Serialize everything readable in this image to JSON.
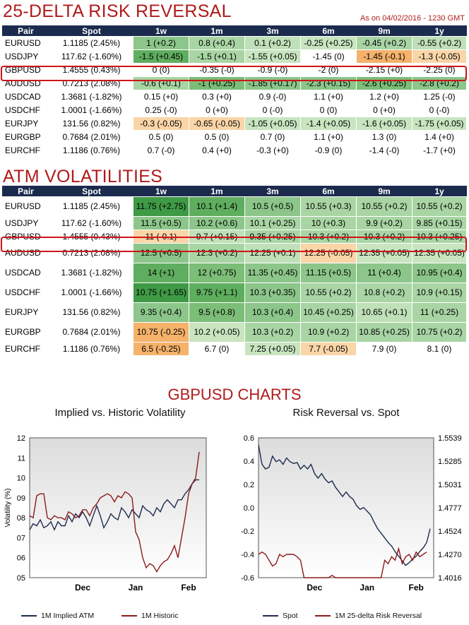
{
  "rr": {
    "title": "25-DELTA RISK REVERSAL",
    "as_of": "As on 04/02/2016 - 1230 GMT",
    "headers": [
      "Pair",
      "Spot",
      "1w",
      "1m",
      "3m",
      "6m",
      "9m",
      "1y"
    ],
    "rows": [
      {
        "pair": "EURUSD",
        "spot": "1.1185 (2.45%)",
        "cells": [
          "1 (+0.2)",
          "0.8 (+0.4)",
          "0.1 (+0.2)",
          "-0.25 (+0.25)",
          "-0.45 (+0.2)",
          "-0.55 (+0.2)"
        ],
        "colors": [
          "#8cc68a",
          "#a9d5a4",
          "#bfe0b8",
          "#c8e5c0",
          "#a9d5a4",
          "#bfe0b8"
        ]
      },
      {
        "pair": "USDJPY",
        "spot": "117.62 (-1.60%)",
        "cells": [
          "-1.5 (+0.45)",
          "-1.5 (+0.1)",
          "-1.55 (+0.05)",
          "-1.45 (0)",
          "-1.45 (-0.1)",
          "-1.3 (-0.05)"
        ],
        "colors": [
          "#5fae5f",
          "#a9d5a4",
          "#c8e5c0",
          "#ffffff",
          "#f5b26b",
          "#f9d5a8"
        ]
      },
      {
        "pair": "GBPUSD",
        "spot": "1.4555 (0.43%)",
        "cells": [
          "0 (0)",
          "-0.35 (-0)",
          "-0.9 (-0)",
          "-2 (0)",
          "-2.15 (+0)",
          "-2.25 (0)"
        ],
        "colors": [
          "#ffffff",
          "#ffffff",
          "#ffffff",
          "#ffffff",
          "#ffffff",
          "#ffffff"
        ]
      },
      {
        "pair": "AUDUSD",
        "spot": "0.7213 (2.08%)",
        "cells": [
          "-0.6 (+0.1)",
          "-1 (+0.25)",
          "-1.85 (+0.17)",
          "-2.3 (+0.15)",
          "-2.6 (+0.25)",
          "-2.8 (+0.2)"
        ],
        "colors": [
          "#a9d5a4",
          "#7cbd77",
          "#8cc68a",
          "#8cc68a",
          "#7cbd77",
          "#8cc68a"
        ]
      },
      {
        "pair": "USDCAD",
        "spot": "1.3681 (-1.82%)",
        "cells": [
          "0.15 (+0)",
          "0.3 (+0)",
          "0.9 (-0)",
          "1.1 (+0)",
          "1.2 (+0)",
          "1.25 (-0)"
        ],
        "colors": [
          "#ffffff",
          "#ffffff",
          "#ffffff",
          "#ffffff",
          "#ffffff",
          "#ffffff"
        ]
      },
      {
        "pair": "USDCHF",
        "spot": "1.0001 (-1.66%)",
        "cells": [
          "0.25 (-0)",
          "0 (+0)",
          "0 (-0)",
          "0 (0)",
          "0 (+0)",
          "0 (-0)"
        ],
        "colors": [
          "#ffffff",
          "#ffffff",
          "#ffffff",
          "#ffffff",
          "#ffffff",
          "#ffffff"
        ]
      },
      {
        "pair": "EURJPY",
        "spot": "131.56 (0.82%)",
        "cells": [
          "-0.3 (-0.05)",
          "-0.65 (-0.05)",
          "-1.05 (+0.05)",
          "-1.4 (+0.05)",
          "-1.6 (+0.05)",
          "-1.75 (+0.05)"
        ],
        "colors": [
          "#f9d5a8",
          "#f9d5a8",
          "#c8e5c0",
          "#c8e5c0",
          "#c8e5c0",
          "#c8e5c0"
        ]
      },
      {
        "pair": "EURGBP",
        "spot": "0.7684 (2.01%)",
        "cells": [
          "0.5 (0)",
          "0.5 (0)",
          "0.7 (0)",
          "1.1 (+0)",
          "1.3 (0)",
          "1.4 (+0)"
        ],
        "colors": [
          "#ffffff",
          "#ffffff",
          "#ffffff",
          "#ffffff",
          "#ffffff",
          "#ffffff"
        ]
      },
      {
        "pair": "EURCHF",
        "spot": "1.1186 (0.76%)",
        "cells": [
          "0.7 (-0)",
          "0.4 (+0)",
          "-0.3 (+0)",
          "-0.9 (0)",
          "-1.4 (-0)",
          "-1.7 (+0)"
        ],
        "colors": [
          "#ffffff",
          "#ffffff",
          "#ffffff",
          "#ffffff",
          "#ffffff",
          "#ffffff"
        ]
      }
    ]
  },
  "atm": {
    "title": "ATM VOLATILITIES",
    "headers": [
      "Pair",
      "Spot",
      "1w",
      "1m",
      "3m",
      "6m",
      "9m",
      "1y"
    ],
    "rows": [
      {
        "pair": "EURUSD",
        "spot": "1.1185 (2.45%)",
        "cells": [
          "11.75 (+2.75)",
          "10.1 (+1.4)",
          "10.5 (+0.5)",
          "10.55 (+0.3)",
          "10.55 (+0.2)",
          "10.55 (+0.2)"
        ],
        "colors": [
          "#3f9a45",
          "#5fae5f",
          "#8cc68a",
          "#a9d5a4",
          "#a9d5a4",
          "#a9d5a4"
        ]
      },
      {
        "pair": "USDJPY",
        "spot": "117.62 (-1.60%)",
        "cells": [
          "11.5 (+0.5)",
          "10.2 (+0.6)",
          "10.1 (+0.25)",
          "10 (+0.3)",
          "9.9 (+0.2)",
          "9.85 (+0.15)"
        ],
        "colors": [
          "#8cc68a",
          "#8cc68a",
          "#a9d5a4",
          "#a9d5a4",
          "#a9d5a4",
          "#a9d5a4"
        ]
      },
      {
        "pair": "GBPUSD",
        "spot": "1.4555 (0.43%)",
        "cells": [
          "11 (-0.1)",
          "9.7 (+0.15)",
          "9.35 (+0.25)",
          "10.3 (+0.2)",
          "10.3 (+0.2)",
          "10.3 (+0.25)"
        ],
        "colors": [
          "#f9d5a8",
          "#bfe0b8",
          "#a9d5a4",
          "#a9d5a4",
          "#a9d5a4",
          "#a9d5a4"
        ]
      },
      {
        "pair": "AUDUSD",
        "spot": "0.7213 (2.08%)",
        "cells": [
          "12.5 (+0.5)",
          "12.3 (+0.2)",
          "12.25 (+0.1)",
          "12.25 (-0.05)",
          "12.35 (+0.05)",
          "12.35 (+0.05)"
        ],
        "colors": [
          "#8cc68a",
          "#a9d5a4",
          "#bfe0b8",
          "#f9d5a8",
          "#c8e5c0",
          "#c8e5c0"
        ]
      },
      {
        "pair": "USDCAD",
        "spot": "1.3681 (-1.82%)",
        "cells": [
          "14 (+1)",
          "12 (+0.75)",
          "11.35 (+0.45)",
          "11.15 (+0.5)",
          "11 (+0.4)",
          "10.95 (+0.4)"
        ],
        "colors": [
          "#5fae5f",
          "#7cbd77",
          "#8cc68a",
          "#8cc68a",
          "#8cc68a",
          "#8cc68a"
        ]
      },
      {
        "pair": "USDCHF",
        "spot": "1.0001 (-1.66%)",
        "cells": [
          "10.75 (+1.65)",
          "9.75 (+1.1)",
          "10.3 (+0.35)",
          "10.55 (+0.2)",
          "10.8 (+0.2)",
          "10.9 (+0.15)"
        ],
        "colors": [
          "#3f9a45",
          "#5fae5f",
          "#8cc68a",
          "#a9d5a4",
          "#a9d5a4",
          "#a9d5a4"
        ]
      },
      {
        "pair": "EURJPY",
        "spot": "131.56 (0.82%)",
        "cells": [
          "9.35 (+0.4)",
          "9.5 (+0.8)",
          "10.3 (+0.4)",
          "10.45 (+0.25)",
          "10.65 (+0.1)",
          "11 (+0.25)"
        ],
        "colors": [
          "#8cc68a",
          "#7cbd77",
          "#8cc68a",
          "#a9d5a4",
          "#bfe0b8",
          "#a9d5a4"
        ]
      },
      {
        "pair": "EURGBP",
        "spot": "0.7684 (2.01%)",
        "cells": [
          "10.75 (-0.25)",
          "10.2 (+0.05)",
          "10.3 (+0.2)",
          "10.9 (+0.2)",
          "10.85 (+0.25)",
          "10.75 (+0.2)"
        ],
        "colors": [
          "#f5b26b",
          "#c8e5c0",
          "#a9d5a4",
          "#a9d5a4",
          "#a9d5a4",
          "#a9d5a4"
        ]
      },
      {
        "pair": "EURCHF",
        "spot": "1.1186 (0.76%)",
        "cells": [
          "6.5 (-0.25)",
          "6.7 (0)",
          "7.25 (+0.05)",
          "7.7 (-0.05)",
          "7.9 (0)",
          "8.1 (0)"
        ],
        "colors": [
          "#f5b26b",
          "#ffffff",
          "#c8e5c0",
          "#f9d5a8",
          "#ffffff",
          "#ffffff"
        ]
      }
    ]
  },
  "charts_title": "GBPUSD CHARTS",
  "chart_data": [
    {
      "type": "line",
      "title": "Implied vs. Historic Volatility",
      "ylabel": "Volatility (%)",
      "ylim": [
        5,
        12
      ],
      "yticks": [
        "05",
        "06",
        "07",
        "08",
        "09",
        "10",
        "11",
        "12"
      ],
      "xticks": [
        "Dec",
        "Jan",
        "Feb"
      ],
      "xtick_pos": [
        0.3,
        0.6,
        0.9
      ],
      "grid": false,
      "legend_position": "bottom",
      "series": [
        {
          "name": "1M Implied ATM",
          "color": "#1b2b4d",
          "x": [
            0,
            0.02,
            0.04,
            0.06,
            0.08,
            0.1,
            0.12,
            0.14,
            0.16,
            0.18,
            0.2,
            0.22,
            0.24,
            0.26,
            0.28,
            0.3,
            0.32,
            0.34,
            0.36,
            0.38,
            0.4,
            0.42,
            0.44,
            0.46,
            0.48,
            0.5,
            0.52,
            0.54,
            0.56,
            0.58,
            0.6,
            0.62,
            0.64,
            0.66,
            0.68,
            0.7,
            0.72,
            0.74,
            0.76,
            0.78,
            0.8,
            0.82,
            0.84,
            0.86,
            0.88,
            0.9,
            0.92,
            0.94,
            0.96
          ],
          "y": [
            7.4,
            7.7,
            7.6,
            7.9,
            7.5,
            7.6,
            7.8,
            7.4,
            7.8,
            7.6,
            7.6,
            8.1,
            7.8,
            8.2,
            8.0,
            8.3,
            8.0,
            7.6,
            8.1,
            8.6,
            8.1,
            7.5,
            7.8,
            8.2,
            8.0,
            7.9,
            8.5,
            8.3,
            8.0,
            8.4,
            8.2,
            8.0,
            8.6,
            8.4,
            8.3,
            8.1,
            8.5,
            8.3,
            8.7,
            8.9,
            8.7,
            8.5,
            8.9,
            8.9,
            9.2,
            9.4,
            9.7,
            9.9,
            9.9
          ]
        },
        {
          "name": "1M Historic",
          "color": "#8b1a1a",
          "x": [
            0,
            0.02,
            0.04,
            0.06,
            0.08,
            0.1,
            0.12,
            0.14,
            0.16,
            0.18,
            0.2,
            0.22,
            0.24,
            0.26,
            0.28,
            0.3,
            0.32,
            0.34,
            0.36,
            0.38,
            0.4,
            0.42,
            0.44,
            0.46,
            0.48,
            0.5,
            0.52,
            0.54,
            0.56,
            0.58,
            0.6,
            0.62,
            0.64,
            0.66,
            0.68,
            0.7,
            0.72,
            0.74,
            0.76,
            0.78,
            0.8,
            0.82,
            0.84,
            0.86,
            0.88,
            0.9,
            0.92,
            0.94,
            0.96
          ],
          "y": [
            8.1,
            8.0,
            9.1,
            9.2,
            9.2,
            8.0,
            7.9,
            8.1,
            8.0,
            8.0,
            7.9,
            8.3,
            8.2,
            8.0,
            8.1,
            8.4,
            8.4,
            8.1,
            8.5,
            8.7,
            9.0,
            9.1,
            9.2,
            9.1,
            8.8,
            9.1,
            9.0,
            9.3,
            9.2,
            9.0,
            7.3,
            6.9,
            6.0,
            5.5,
            5.7,
            5.6,
            5.3,
            5.6,
            5.8,
            5.9,
            6.2,
            6.6,
            6.0,
            7.0,
            8.0,
            9.2,
            9.7,
            10.0,
            11.3
          ]
        }
      ]
    },
    {
      "type": "line",
      "title": "Risk Reversal vs. Spot",
      "ylim": [
        -0.6,
        0.6
      ],
      "yticks_left": [
        "-0.6",
        "-0.4",
        "-0.2",
        "0.0",
        "0.2",
        "0.4",
        "0.6"
      ],
      "y2lim": [
        1.4016,
        1.5539
      ],
      "yticks_right": [
        "1.4016",
        "1.4270",
        "1.4524",
        "1.4777",
        "1.5031",
        "1.5285",
        "1.5539"
      ],
      "xticks": [
        "Dec",
        "Jan",
        "Feb"
      ],
      "xtick_pos": [
        0.32,
        0.62,
        0.9
      ],
      "grid": false,
      "legend_position": "bottom",
      "series": [
        {
          "name": "Spot",
          "color": "#1b2b4d",
          "axis": "right",
          "x": [
            0,
            0.02,
            0.04,
            0.06,
            0.08,
            0.1,
            0.12,
            0.14,
            0.16,
            0.18,
            0.2,
            0.22,
            0.24,
            0.26,
            0.28,
            0.3,
            0.32,
            0.34,
            0.36,
            0.38,
            0.4,
            0.42,
            0.44,
            0.46,
            0.48,
            0.5,
            0.52,
            0.54,
            0.56,
            0.58,
            0.6,
            0.62,
            0.64,
            0.66,
            0.68,
            0.7,
            0.72,
            0.74,
            0.76,
            0.78,
            0.8,
            0.82,
            0.84,
            0.86,
            0.88,
            0.9,
            0.92,
            0.94,
            0.96,
            0.98
          ],
          "y": [
            1.546,
            1.525,
            1.52,
            1.522,
            1.534,
            1.528,
            1.53,
            1.525,
            1.532,
            1.528,
            1.526,
            1.527,
            1.52,
            1.524,
            1.52,
            1.525,
            1.515,
            1.51,
            1.515,
            1.509,
            1.505,
            1.507,
            1.5,
            1.495,
            1.49,
            1.495,
            1.49,
            1.487,
            1.48,
            1.476,
            1.478,
            1.474,
            1.47,
            1.462,
            1.455,
            1.45,
            1.445,
            1.44,
            1.436,
            1.43,
            1.425,
            1.42,
            1.415,
            1.418,
            1.422,
            1.425,
            1.43,
            1.434,
            1.44,
            1.455
          ]
        },
        {
          "name": "1M 25-delta Risk Reversal",
          "color": "#8b1a1a",
          "axis": "left",
          "x": [
            0,
            0.02,
            0.04,
            0.06,
            0.08,
            0.1,
            0.12,
            0.14,
            0.16,
            0.18,
            0.2,
            0.22,
            0.24,
            0.26,
            0.28,
            0.3,
            0.32,
            0.34,
            0.36,
            0.38,
            0.4,
            0.42,
            0.44,
            0.46,
            0.48,
            0.5,
            0.52,
            0.54,
            0.56,
            0.58,
            0.6,
            0.62,
            0.64,
            0.66,
            0.68,
            0.7,
            0.72,
            0.74,
            0.76,
            0.78,
            0.8,
            0.82,
            0.84,
            0.86,
            0.88,
            0.9,
            0.92,
            0.94,
            0.96
          ],
          "y": [
            -0.4,
            -0.38,
            -0.4,
            -0.45,
            -0.5,
            -0.48,
            -0.4,
            -0.42,
            -0.4,
            -0.4,
            -0.4,
            -0.42,
            -0.45,
            -0.6,
            -0.6,
            -0.6,
            -0.6,
            -0.6,
            -0.6,
            -0.6,
            -0.6,
            -0.58,
            -0.6,
            -0.6,
            -0.6,
            -0.62,
            -0.62,
            -0.62,
            -0.62,
            -0.6,
            -0.6,
            -0.62,
            -0.62,
            -0.62,
            -0.62,
            -0.6,
            -0.45,
            -0.48,
            -0.42,
            -0.45,
            -0.35,
            -0.48,
            -0.42,
            -0.4,
            -0.45,
            -0.38,
            -0.42,
            -0.4,
            -0.38
          ]
        }
      ]
    }
  ]
}
